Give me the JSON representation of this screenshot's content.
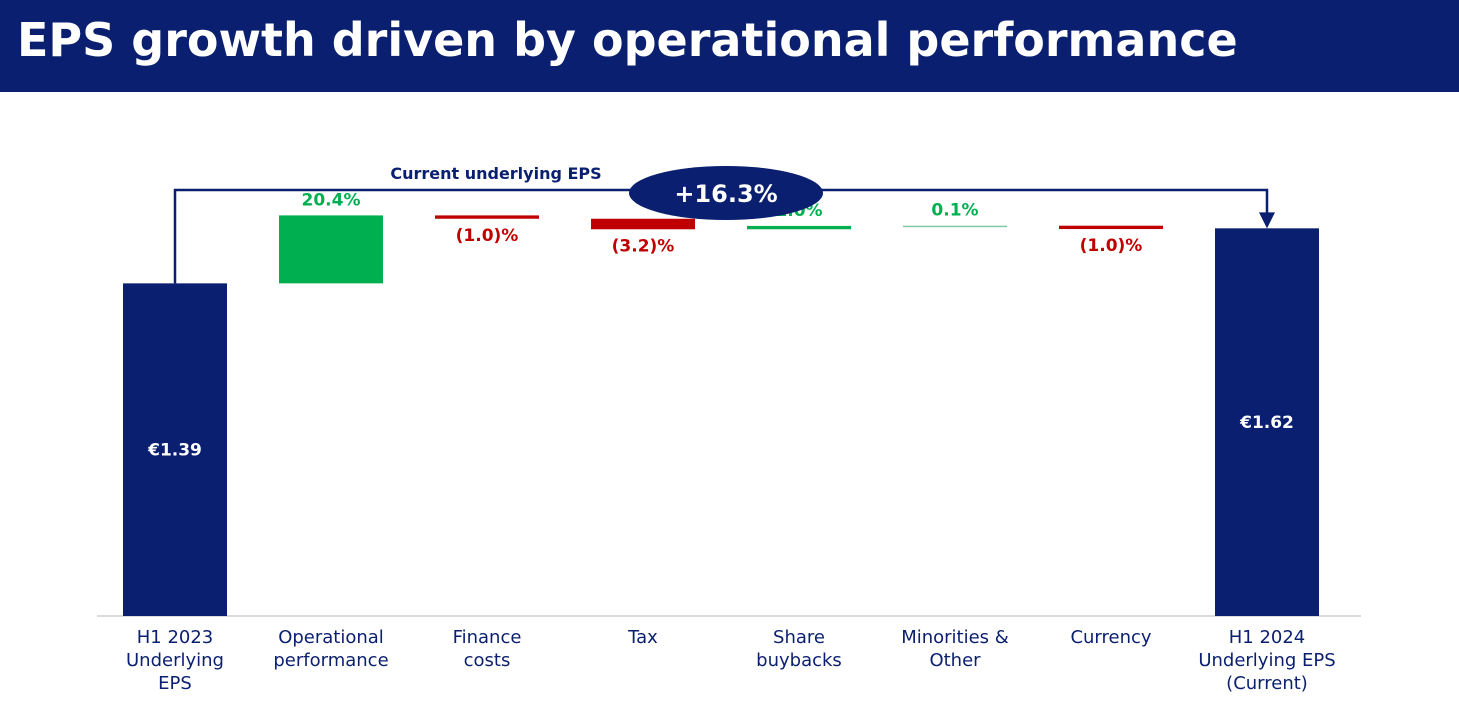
{
  "title": "EPS growth driven by operational performance",
  "colors": {
    "navy": "#0a1f6f",
    "positive": "#00b050",
    "negative": "#c00000",
    "minor_positive": "#7fc9a6"
  },
  "chart_data": {
    "type": "bar",
    "subtype": "waterfall",
    "title": "",
    "categories": [
      [
        "H1 2023",
        "Underlying",
        "EPS"
      ],
      [
        "Operational",
        "performance"
      ],
      [
        "Finance",
        "costs"
      ],
      [
        "Tax"
      ],
      [
        "Share",
        "buybacks"
      ],
      [
        "Minorities &",
        "Other"
      ],
      [
        "Currency"
      ],
      [
        "H1 2024",
        "Underlying EPS",
        "(Current)"
      ]
    ],
    "bars": [
      {
        "kind": "total",
        "value": 1.39,
        "pct": null,
        "label": "€1.39"
      },
      {
        "kind": "delta",
        "value": 0.284,
        "pct": 20.4,
        "label": "20.4%"
      },
      {
        "kind": "delta",
        "value": -0.014,
        "pct": -1.0,
        "label": "(1.0)%"
      },
      {
        "kind": "delta",
        "value": -0.044,
        "pct": -3.2,
        "label": "(3.2)%"
      },
      {
        "kind": "delta",
        "value": 0.014,
        "pct": 1.0,
        "label": "1.0%"
      },
      {
        "kind": "delta",
        "value": 0.001,
        "pct": 0.1,
        "label": "0.1%"
      },
      {
        "kind": "delta",
        "value": -0.014,
        "pct": -1.0,
        "label": "(1.0)%"
      },
      {
        "kind": "total",
        "value": 1.62,
        "pct": null,
        "label": "€1.62"
      }
    ],
    "annotation": {
      "text": "Current underlying EPS",
      "badge": "+16.3%"
    },
    "xlabel": "",
    "ylabel": "",
    "ylim": [
      0,
      1.73
    ],
    "grid": false,
    "legend": "none"
  }
}
